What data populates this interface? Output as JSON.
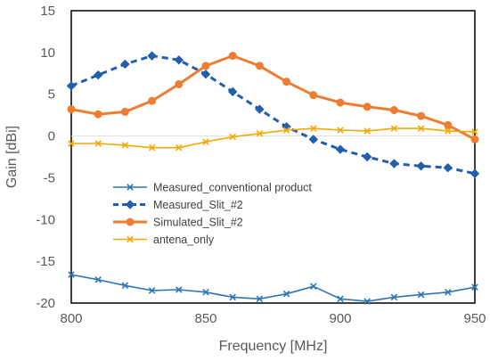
{
  "chart_data": {
    "type": "line",
    "title": "",
    "xlabel": "Frequency  [MHz]",
    "ylabel": "Gain [dBi]",
    "xlim": [
      800,
      950
    ],
    "ylim": [
      -20,
      15
    ],
    "x_ticks": [
      800,
      850,
      900,
      950
    ],
    "y_ticks": [
      -20,
      -15,
      -10,
      -5,
      0,
      5,
      10,
      15
    ],
    "grid": "none",
    "legend_position": "lower-left",
    "x": [
      800,
      810,
      820,
      830,
      840,
      850,
      860,
      870,
      880,
      890,
      900,
      910,
      920,
      930,
      940,
      950
    ],
    "series": [
      {
        "name": "Measured_conventional product",
        "color": "#2E75B6",
        "line": "solid",
        "marker": "x",
        "values": [
          -16.6,
          -17.2,
          -17.9,
          -18.5,
          -18.4,
          -18.7,
          -19.3,
          -19.5,
          -18.9,
          -18.0,
          -19.5,
          -19.8,
          -19.3,
          -19.0,
          -18.7,
          -18.1
        ]
      },
      {
        "name": "Measured_Slit_#2",
        "color": "#1F5FAD",
        "line": "dashed",
        "marker": "diamond",
        "values": [
          6.0,
          7.3,
          8.6,
          9.6,
          9.1,
          7.4,
          5.3,
          3.2,
          1.1,
          -0.4,
          -1.6,
          -2.5,
          -3.3,
          -3.6,
          -3.8,
          -4.5
        ]
      },
      {
        "name": "Simulated_Slit_#2",
        "color": "#ED7D31",
        "line": "solid",
        "marker": "circle",
        "values": [
          3.2,
          2.6,
          2.9,
          4.2,
          6.2,
          8.4,
          9.6,
          8.4,
          6.5,
          4.9,
          4.0,
          3.5,
          3.1,
          2.4,
          1.3,
          -0.4
        ]
      },
      {
        "name": "antena_only",
        "color": "#F2A900",
        "line": "solid",
        "marker": "x",
        "values": [
          -0.9,
          -0.9,
          -1.1,
          -1.4,
          -1.4,
          -0.7,
          -0.1,
          0.3,
          0.7,
          0.9,
          0.7,
          0.6,
          0.9,
          0.9,
          0.6,
          0.5
        ]
      }
    ]
  }
}
